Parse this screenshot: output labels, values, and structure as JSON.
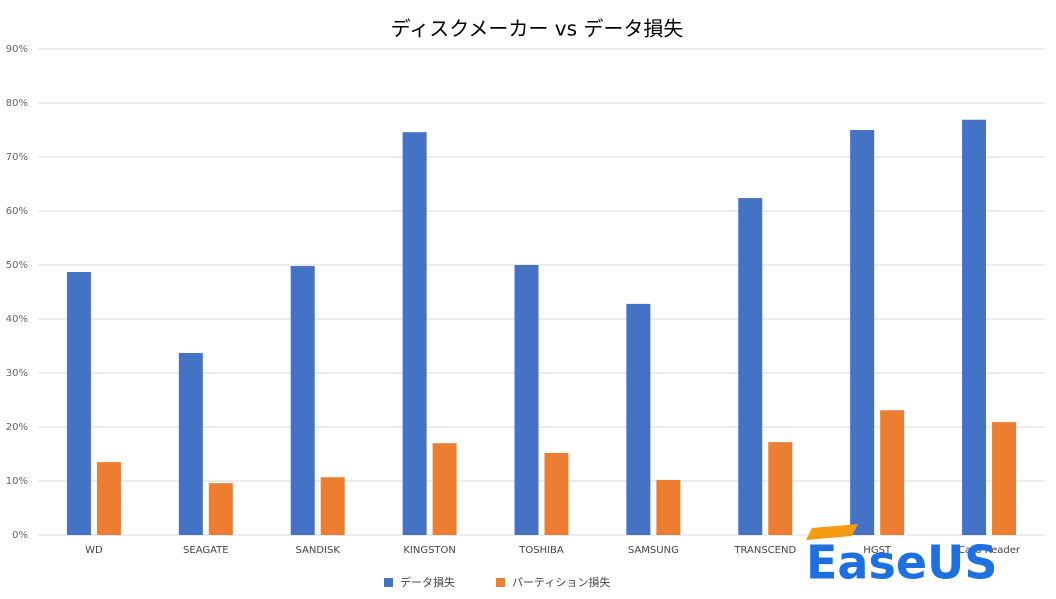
{
  "chart_data": {
    "type": "bar",
    "title": "ディスクメーカー vs データ損失",
    "categories": [
      "WD",
      "SEAGATE",
      "SANDISK",
      "KINGSTON",
      "TOSHIBA",
      "SAMSUNG",
      "TRANSCEND",
      "HGST",
      "Card Reader"
    ],
    "series": [
      {
        "name": "データ損失",
        "color": "#4472c4",
        "values": [
          48.7,
          33.7,
          49.8,
          74.6,
          50.0,
          42.8,
          62.4,
          75.0,
          76.9
        ]
      },
      {
        "name": "パーティション損失",
        "color": "#ed7d31",
        "values": [
          13.5,
          9.6,
          10.7,
          17.0,
          15.2,
          10.2,
          17.2,
          23.1,
          20.9
        ]
      }
    ],
    "ylim": [
      0,
      90
    ],
    "yticks": [
      {
        "value": 0,
        "label": "0%"
      },
      {
        "value": 10,
        "label": "10%"
      },
      {
        "value": 20,
        "label": "20%"
      },
      {
        "value": 30,
        "label": "30%"
      },
      {
        "value": 40,
        "label": "40%"
      },
      {
        "value": 50,
        "label": "50%"
      },
      {
        "value": 60,
        "label": "60%"
      },
      {
        "value": 70,
        "label": "70%"
      },
      {
        "value": 80,
        "label": "80%"
      },
      {
        "value": 90,
        "label": "90%"
      }
    ],
    "grid": true,
    "legend": "bottom",
    "watermark": "EaseUS"
  }
}
